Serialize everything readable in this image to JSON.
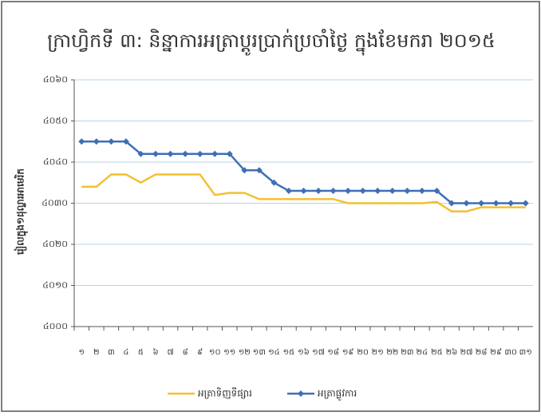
{
  "chart_data": {
    "type": "line",
    "title": "ក្រាហ្វិកទី ៣: និន្នាការអត្រាប្តូរប្រាក់ប្រចាំថ្ងៃ ក្នុងខែមករា ២០១៥",
    "y_label": "រៀលក្នុង១ដុល្លារអាមេរិក",
    "categories": [
      "១",
      "២",
      "៣",
      "៤",
      "៥",
      "៦",
      "៧",
      "៨",
      "៩",
      "១០",
      "១១",
      "១២",
      "១៣",
      "១៤",
      "១៥",
      "១៦",
      "១៧",
      "១៨",
      "១៩",
      "២០",
      "២១",
      "២២",
      "២៣",
      "២៤",
      "២៥",
      "២៦",
      "២៧",
      "២៨",
      "២៩",
      "៣០",
      "៣១"
    ],
    "series": [
      {
        "name": "អត្រាទិញទីផ្សារ",
        "color": "#f2c12e",
        "marker": "line",
        "values": [
          4034,
          4034,
          4037,
          4037,
          4035,
          4037,
          4037,
          4037,
          4037,
          4032,
          4032.5,
          4032.5,
          4031,
          4031,
          4031,
          4031,
          4031,
          4031,
          4030,
          4030,
          4030,
          4030,
          4030,
          4030,
          4030.3,
          4028,
          4028,
          4029,
          4029,
          4029,
          4029
        ]
      },
      {
        "name": "អត្រាផ្លូវការ",
        "color": "#3f6fb5",
        "marker": "diamond",
        "values": [
          4045,
          4045,
          4045,
          4045,
          4042,
          4042,
          4042,
          4042,
          4042,
          4042,
          4042,
          4038,
          4038,
          4035,
          4033,
          4033,
          4033,
          4033,
          4033,
          4033,
          4033,
          4033,
          4033,
          4033,
          4033,
          4030,
          4030,
          4030,
          4030,
          4030,
          4030
        ]
      }
    ],
    "ylim": [
      4000,
      4060
    ],
    "yticks": [
      {
        "value": 4000,
        "label": "៤០០០"
      },
      {
        "value": 4010,
        "label": "៤០១០"
      },
      {
        "value": 4020,
        "label": "៤០២០"
      },
      {
        "value": 4030,
        "label": "៤០៣០"
      },
      {
        "value": 4040,
        "label": "៤០៤០"
      },
      {
        "value": 4050,
        "label": "៤០៥០"
      },
      {
        "value": 4060,
        "label": "៤០៦០"
      }
    ],
    "grid": true,
    "legend": "bottom"
  }
}
